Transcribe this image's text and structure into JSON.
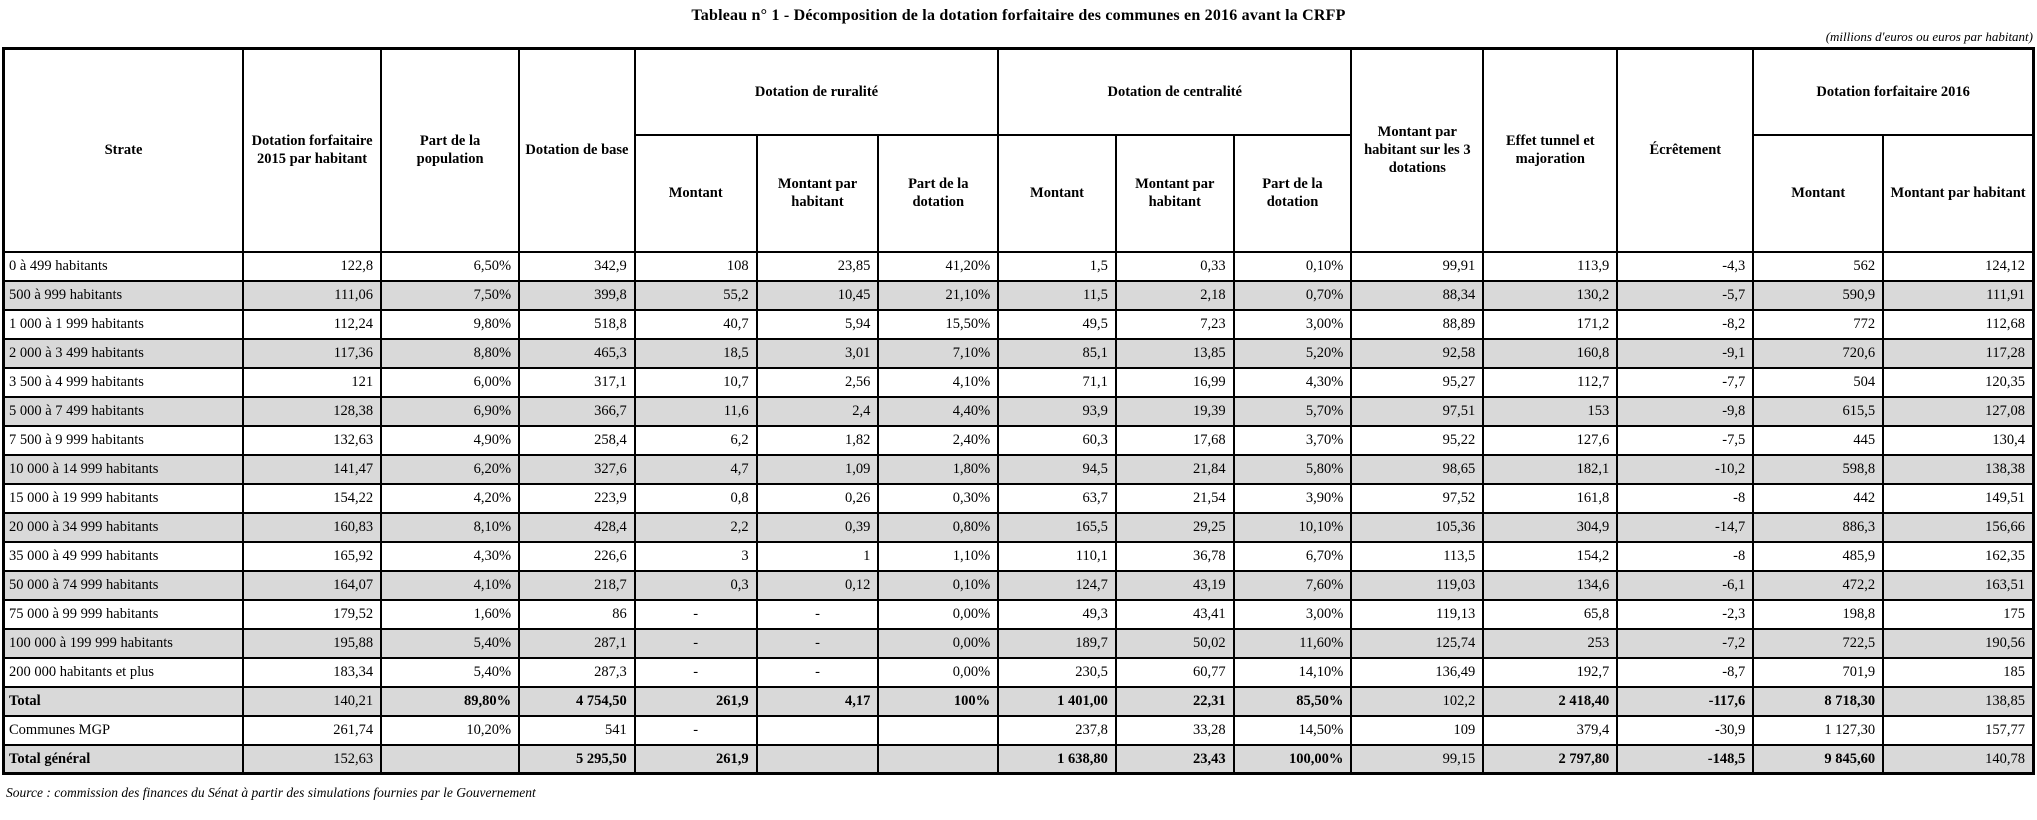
{
  "title": "Tableau n° 1 - Décomposition de la dotation forfaitaire des communes en 2016 avant la CRFP",
  "unit_note": "(millions d'euros ou euros par habitant)",
  "source": "Source : commission des finances du Sénat à partir des simulations fournies par le Gouvernement",
  "colors": {
    "stripe": "#d9d9d9",
    "border": "#000000",
    "background": "#ffffff"
  },
  "table": {
    "headers": {
      "strate": "Strate",
      "df2015": "Dotation forfaitaire 2015 par habitant",
      "part_population": "Part de la population",
      "dotation_base": "Dotation de base",
      "ruralite": "Dotation de ruralité",
      "centralite": "Dotation de centralité",
      "montant": "Montant",
      "montant_par_habitant": "Montant par habitant",
      "part_dotation": "Part de la dotation",
      "montant_3_dotations": "Montant par habitant sur les 3 dotations",
      "effet_tunnel": "Effet tunnel et majoration",
      "ecretement": "Écrêtement",
      "df2016": "Dotation forfaitaire 2016"
    },
    "rows": [
      {
        "label": "0 à 499 habitants",
        "shaded": false,
        "cells": [
          "122,8",
          "6,50%",
          "342,9",
          "108",
          "23,85",
          "41,20%",
          "1,5",
          "0,33",
          "0,10%",
          "99,91",
          "113,9",
          "-4,3",
          "562",
          "124,12"
        ]
      },
      {
        "label": "500 à 999 habitants",
        "shaded": true,
        "cells": [
          "111,06",
          "7,50%",
          "399,8",
          "55,2",
          "10,45",
          "21,10%",
          "11,5",
          "2,18",
          "0,70%",
          "88,34",
          "130,2",
          "-5,7",
          "590,9",
          "111,91"
        ]
      },
      {
        "label": "1 000 à 1 999 habitants",
        "shaded": false,
        "cells": [
          "112,24",
          "9,80%",
          "518,8",
          "40,7",
          "5,94",
          "15,50%",
          "49,5",
          "7,23",
          "3,00%",
          "88,89",
          "171,2",
          "-8,2",
          "772",
          "112,68"
        ]
      },
      {
        "label": "2 000 à 3 499 habitants",
        "shaded": true,
        "cells": [
          "117,36",
          "8,80%",
          "465,3",
          "18,5",
          "3,01",
          "7,10%",
          "85,1",
          "13,85",
          "5,20%",
          "92,58",
          "160,8",
          "-9,1",
          "720,6",
          "117,28"
        ]
      },
      {
        "label": "3 500 à 4 999 habitants",
        "shaded": false,
        "cells": [
          "121",
          "6,00%",
          "317,1",
          "10,7",
          "2,56",
          "4,10%",
          "71,1",
          "16,99",
          "4,30%",
          "95,27",
          "112,7",
          "-7,7",
          "504",
          "120,35"
        ]
      },
      {
        "label": "5 000 à 7 499 habitants",
        "shaded": true,
        "cells": [
          "128,38",
          "6,90%",
          "366,7",
          "11,6",
          "2,4",
          "4,40%",
          "93,9",
          "19,39",
          "5,70%",
          "97,51",
          "153",
          "-9,8",
          "615,5",
          "127,08"
        ]
      },
      {
        "label": "7 500 à 9 999 habitants",
        "shaded": false,
        "cells": [
          "132,63",
          "4,90%",
          "258,4",
          "6,2",
          "1,82",
          "2,40%",
          "60,3",
          "17,68",
          "3,70%",
          "95,22",
          "127,6",
          "-7,5",
          "445",
          "130,4"
        ]
      },
      {
        "label": "10 000 à 14 999 habitants",
        "shaded": true,
        "cells": [
          "141,47",
          "6,20%",
          "327,6",
          "4,7",
          "1,09",
          "1,80%",
          "94,5",
          "21,84",
          "5,80%",
          "98,65",
          "182,1",
          "-10,2",
          "598,8",
          "138,38"
        ]
      },
      {
        "label": "15 000 à 19 999 habitants",
        "shaded": false,
        "cells": [
          "154,22",
          "4,20%",
          "223,9",
          "0,8",
          "0,26",
          "0,30%",
          "63,7",
          "21,54",
          "3,90%",
          "97,52",
          "161,8",
          "-8",
          "442",
          "149,51"
        ]
      },
      {
        "label": "20 000 à 34 999 habitants",
        "shaded": true,
        "cells": [
          "160,83",
          "8,10%",
          "428,4",
          "2,2",
          "0,39",
          "0,80%",
          "165,5",
          "29,25",
          "10,10%",
          "105,36",
          "304,9",
          "-14,7",
          "886,3",
          "156,66"
        ]
      },
      {
        "label": "35 000 à 49 999 habitants",
        "shaded": false,
        "cells": [
          "165,92",
          "4,30%",
          "226,6",
          "3",
          "1",
          "1,10%",
          "110,1",
          "36,78",
          "6,70%",
          "113,5",
          "154,2",
          "-8",
          "485,9",
          "162,35"
        ]
      },
      {
        "label": "50 000 à 74 999 habitants",
        "shaded": true,
        "cells": [
          "164,07",
          "4,10%",
          "218,7",
          "0,3",
          "0,12",
          "0,10%",
          "124,7",
          "43,19",
          "7,60%",
          "119,03",
          "134,6",
          "-6,1",
          "472,2",
          "163,51"
        ]
      },
      {
        "label": "75 000 à 99 999 habitants",
        "shaded": false,
        "cells": [
          "179,52",
          "1,60%",
          "86",
          "-",
          "-",
          "0,00%",
          "49,3",
          "43,41",
          "3,00%",
          "119,13",
          "65,8",
          "-2,3",
          "198,8",
          "175"
        ]
      },
      {
        "label": "100 000 à 199 999 habitants",
        "shaded": true,
        "cells": [
          "195,88",
          "5,40%",
          "287,1",
          "-",
          "-",
          "0,00%",
          "189,7",
          "50,02",
          "11,60%",
          "125,74",
          "253",
          "-7,2",
          "722,5",
          "190,56"
        ]
      },
      {
        "label": "200 000 habitants et plus",
        "shaded": false,
        "cells": [
          "183,34",
          "5,40%",
          "287,3",
          "-",
          "-",
          "0,00%",
          "230,5",
          "60,77",
          "14,10%",
          "136,49",
          "192,7",
          "-8,7",
          "701,9",
          "185"
        ]
      },
      {
        "label": "Total",
        "shaded": true,
        "bold_label": true,
        "cells": [
          "140,21",
          "89,80%",
          "4 754,50",
          "261,9",
          "4,17",
          "100%",
          "1 401,00",
          "22,31",
          "85,50%",
          "102,2",
          "2 418,40",
          "-117,6",
          "8 718,30",
          "138,85"
        ],
        "bold_mask": [
          false,
          true,
          true,
          true,
          true,
          true,
          true,
          true,
          true,
          false,
          true,
          true,
          true,
          false
        ]
      },
      {
        "label": "Communes MGP",
        "shaded": false,
        "cells": [
          "261,74",
          "10,20%",
          "541",
          "-",
          "",
          "",
          "237,8",
          "33,28",
          "14,50%",
          "109",
          "379,4",
          "-30,9",
          "1 127,30",
          "157,77"
        ]
      },
      {
        "label": "Total général",
        "shaded": true,
        "bold_label": true,
        "cells": [
          "152,63",
          "",
          "5 295,50",
          "261,9",
          "",
          "",
          "1 638,80",
          "23,43",
          "100,00%",
          "99,15",
          "2 797,80",
          "-148,5",
          "9 845,60",
          "140,78"
        ],
        "bold_mask": [
          false,
          false,
          true,
          true,
          false,
          false,
          true,
          true,
          true,
          false,
          true,
          true,
          true,
          false
        ]
      }
    ]
  }
}
